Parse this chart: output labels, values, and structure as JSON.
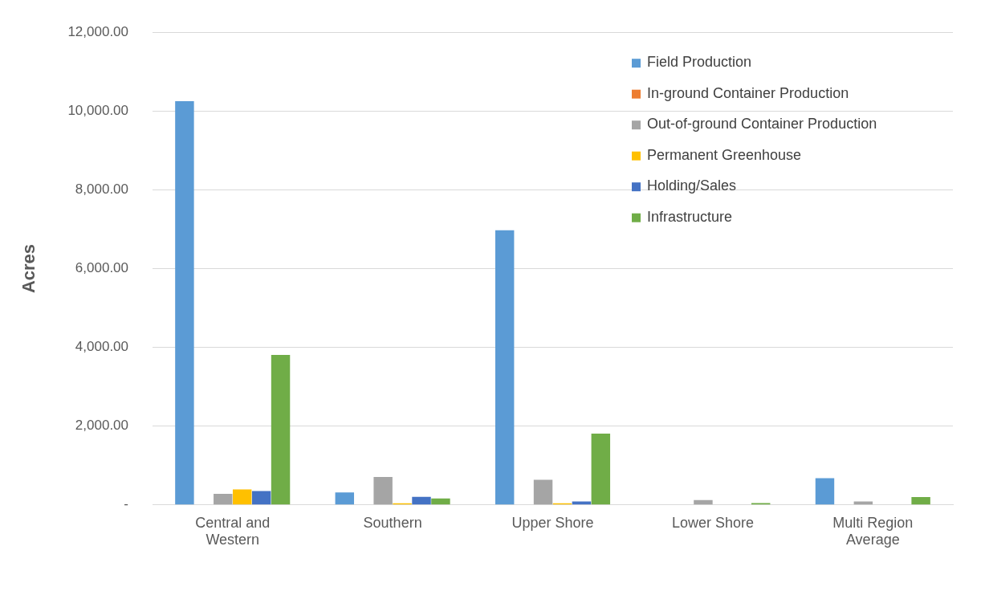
{
  "chart_data": {
    "type": "bar",
    "ylabel": "Acres",
    "categories": [
      "Central and Western",
      "Southern",
      "Upper Shore",
      "Lower Shore",
      "Multi Region Average"
    ],
    "series": [
      {
        "name": "Field Production",
        "color": "#5b9bd5",
        "values": [
          10250,
          315,
          6975,
          0,
          677
        ]
      },
      {
        "name": "In-ground Container Production",
        "color": "#ed7d31",
        "values": [
          0,
          0,
          0,
          0,
          0
        ]
      },
      {
        "name": "Out-of-ground Container Production",
        "color": "#a5a5a5",
        "values": [
          280,
          711,
          636,
          123,
          90
        ]
      },
      {
        "name": "Permanent Greenhouse",
        "color": "#ffc000",
        "values": [
          396,
          40,
          40,
          0,
          0
        ]
      },
      {
        "name": "Holding/Sales",
        "color": "#4472c4",
        "values": [
          355,
          205,
          90,
          0,
          0
        ]
      },
      {
        "name": "Infrastructure",
        "color": "#70ad47",
        "values": [
          3810,
          164,
          1812,
          47,
          198
        ]
      }
    ],
    "ylim": [
      0,
      12000
    ],
    "yticks": [
      {
        "value": 0,
        "label": "-"
      },
      {
        "value": 2000,
        "label": "2,000.00"
      },
      {
        "value": 4000,
        "label": "4,000.00"
      },
      {
        "value": 6000,
        "label": "6,000.00"
      },
      {
        "value": 8000,
        "label": "8,000.00"
      },
      {
        "value": 10000,
        "label": "10,000.00"
      },
      {
        "value": 12000,
        "label": "12,000.00"
      }
    ],
    "grid": "y",
    "legend": "top right"
  }
}
